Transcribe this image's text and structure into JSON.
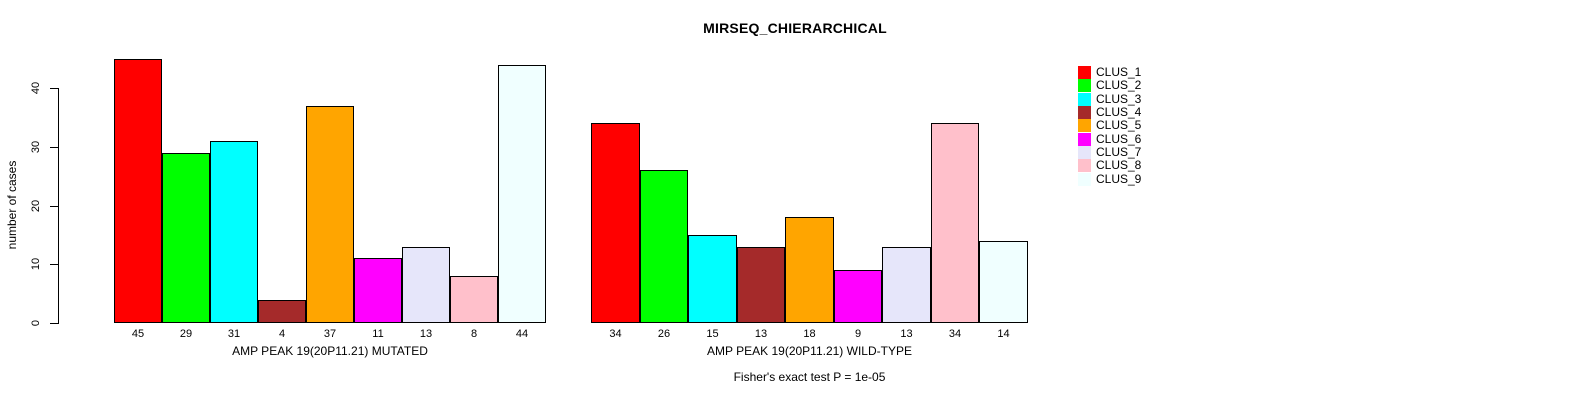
{
  "chart_data": {
    "type": "bar",
    "title": "MIRSEQ_CHIERARCHICAL",
    "ylabel": "number of cases",
    "xlabel": "",
    "ylim": [
      0,
      40
    ],
    "yticks": [
      0,
      10,
      20,
      30,
      40
    ],
    "grid": false,
    "legend_position": "right-outside",
    "bar_value_labels_shown": true,
    "categories": [
      "CLUS_1",
      "CLUS_2",
      "CLUS_3",
      "CLUS_4",
      "CLUS_5",
      "CLUS_6",
      "CLUS_7",
      "CLUS_8",
      "CLUS_9"
    ],
    "bar_colors": [
      "#FF0000",
      "#00FF00",
      "#00FFFF",
      "#A52A2A",
      "#FFA500",
      "#FF00FF",
      "#E6E6FA",
      "#FFC0CB",
      "#F0FFFF"
    ],
    "series": [
      {
        "name": "AMP PEAK 19(20P11.21) MUTATED",
        "values": [
          45,
          29,
          31,
          4,
          37,
          11,
          13,
          8,
          44
        ]
      },
      {
        "name": "AMP PEAK 19(20P11.21) WILD-TYPE",
        "values": [
          34,
          26,
          15,
          13,
          18,
          9,
          13,
          34,
          14
        ]
      }
    ],
    "annotation": "Fisher's exact test P = 1e-05"
  }
}
